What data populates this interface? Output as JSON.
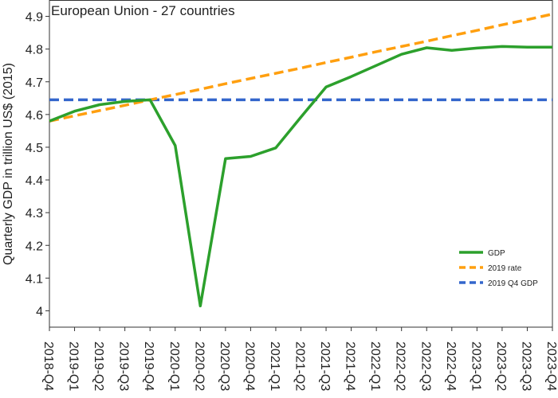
{
  "chart_data": {
    "type": "line",
    "title": "European Union - 27 countries",
    "xlabel": "",
    "ylabel": "Quarterly GDP in trillion US$ (2015)",
    "ylim": [
      3.95,
      4.95
    ],
    "yticks": [
      4,
      4.1,
      4.2,
      4.3,
      4.4,
      4.5,
      4.6,
      4.7,
      4.8,
      4.9
    ],
    "categories": [
      "2018-Q4",
      "2019-Q1",
      "2019-Q2",
      "2019-Q3",
      "2019-Q4",
      "2020-Q1",
      "2020-Q2",
      "2020-Q3",
      "2020-Q4",
      "2021-Q1",
      "2021-Q2",
      "2021-Q3",
      "2021-Q4",
      "2022-Q1",
      "2022-Q2",
      "2022-Q3",
      "2022-Q4",
      "2023-Q1",
      "2023-Q2",
      "2023-Q3",
      "2023-Q4"
    ],
    "grid": false,
    "legend_position": "bottom-right",
    "series": [
      {
        "name": "GDP",
        "color": "#2ca02c",
        "dash": "solid",
        "values": [
          4.58,
          4.61,
          4.63,
          4.64,
          4.645,
          4.505,
          4.015,
          4.465,
          4.472,
          4.498,
          4.592,
          4.684,
          4.716,
          4.75,
          4.784,
          4.804,
          4.796,
          4.803,
          4.808,
          4.806,
          4.806
        ]
      },
      {
        "name": "2019 rate",
        "color": "#ff9f0f",
        "dash": "dashed",
        "values": [
          4.58,
          4.596,
          4.612,
          4.628,
          4.645,
          4.661,
          4.677,
          4.694,
          4.71,
          4.726,
          4.742,
          4.759,
          4.775,
          4.792,
          4.808,
          4.824,
          4.841,
          4.857,
          4.874,
          4.89,
          4.907
        ]
      },
      {
        "name": "2019 Q4 GDP",
        "color": "#3366cc",
        "dash": "dashed",
        "values": [
          4.645,
          4.645,
          4.645,
          4.645,
          4.645,
          4.645,
          4.645,
          4.645,
          4.645,
          4.645,
          4.645,
          4.645,
          4.645,
          4.645,
          4.645,
          4.645,
          4.645,
          4.645,
          4.645,
          4.645,
          4.645
        ]
      }
    ]
  }
}
